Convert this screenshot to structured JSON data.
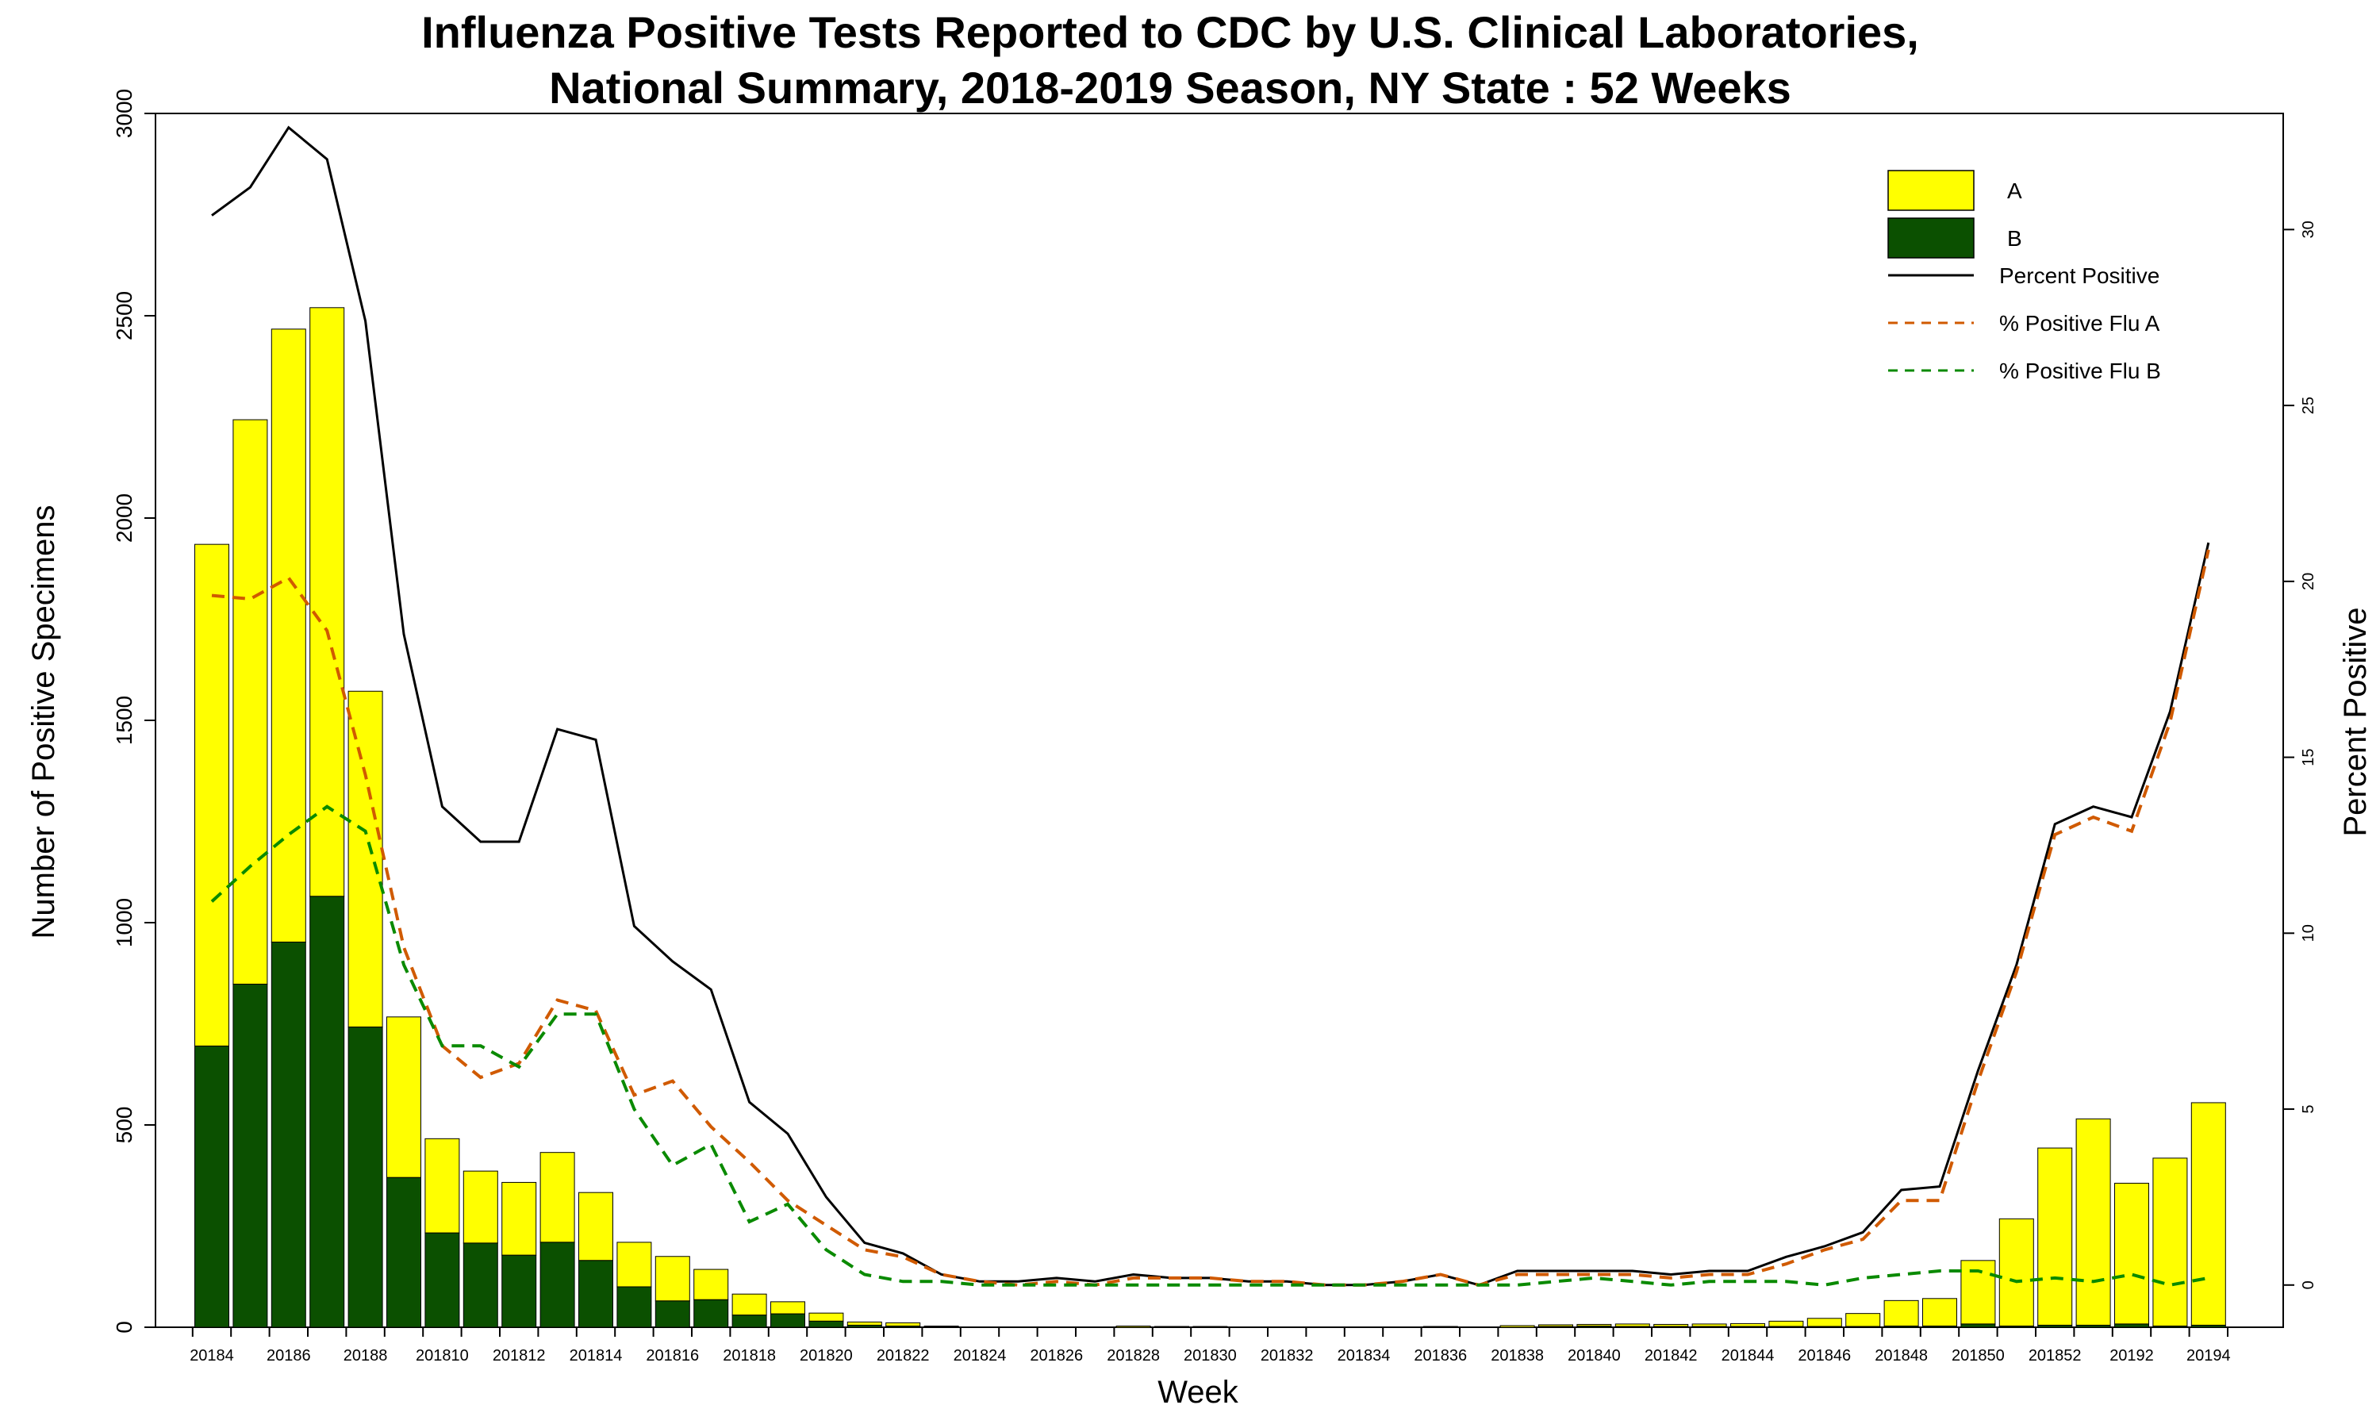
{
  "chart_data": {
    "type": "bar",
    "title_lines": [
      "Influenza Positive Tests Reported to CDC by U.S. Clinical Laboratories,",
      "National Summary, 2018-2019 Season, NY State : 52 Weeks"
    ],
    "xlabel": "Week",
    "ylabel": "Number of Positive Specimens",
    "y2label": "Percent Positive",
    "ylim": [
      0,
      3000
    ],
    "y2lim": [
      -1.2,
      33.3
    ],
    "yticks": [
      "0",
      "500",
      "1000",
      "1500",
      "2000",
      "2500",
      "3000"
    ],
    "y2ticks": [
      "0",
      "5",
      "10",
      "15",
      "20",
      "25",
      "30"
    ],
    "stacked": true,
    "grid": false,
    "legend_position": "top-right",
    "categories": [
      "20184",
      "20185",
      "20186",
      "20187",
      "20188",
      "20189",
      "201810",
      "201811",
      "201812",
      "201813",
      "201814",
      "201815",
      "201816",
      "201817",
      "201818",
      "201819",
      "201820",
      "201821",
      "201822",
      "201823",
      "201824",
      "201825",
      "201826",
      "201827",
      "201828",
      "201829",
      "201830",
      "201831",
      "201832",
      "201833",
      "201834",
      "201835",
      "201836",
      "201837",
      "201838",
      "201839",
      "201840",
      "201841",
      "201842",
      "201843",
      "201844",
      "201845",
      "201846",
      "201847",
      "201848",
      "201849",
      "201850",
      "201851",
      "201852",
      "20191",
      "20192",
      "20193",
      "20194"
    ],
    "tick_labels": [
      "20184",
      "",
      "20186",
      "",
      "20188",
      "",
      "201810",
      "",
      "201812",
      "",
      "201814",
      "",
      "201816",
      "",
      "201818",
      "",
      "201820",
      "",
      "201822",
      "",
      "201824",
      "",
      "201826",
      "",
      "201828",
      "",
      "201830",
      "",
      "201832",
      "",
      "201834",
      "",
      "201836",
      "",
      "201838",
      "",
      "201840",
      "",
      "201842",
      "",
      "201844",
      "",
      "201846",
      "",
      "201848",
      "",
      "201850",
      "",
      "201852",
      "",
      "20192",
      "",
      "20194"
    ],
    "series": [
      {
        "name": "B",
        "color": "#0b5000",
        "values": [
          695,
          848,
          952,
          1065,
          742,
          370,
          233,
          208,
          178,
          210,
          165,
          100,
          65,
          68,
          30,
          33,
          15,
          5,
          3,
          1,
          0,
          0,
          0,
          0,
          0,
          0,
          0,
          0,
          0,
          0,
          0,
          0,
          0,
          0,
          0,
          2,
          3,
          2,
          2,
          2,
          2,
          2,
          2,
          2,
          3,
          3,
          8,
          3,
          5,
          5,
          8,
          3,
          5
        ]
      },
      {
        "name": "A",
        "color": "#ffff00",
        "values": [
          1240,
          1395,
          1515,
          1455,
          830,
          397,
          233,
          178,
          180,
          222,
          168,
          110,
          110,
          75,
          52,
          30,
          20,
          8,
          8,
          2,
          0,
          0,
          0,
          0,
          3,
          2,
          2,
          0,
          0,
          0,
          0,
          0,
          2,
          0,
          4,
          4,
          4,
          6,
          5,
          6,
          7,
          13,
          20,
          32,
          63,
          68,
          157,
          265,
          438,
          510,
          348,
          415,
          550
        ]
      },
      {
        "name": "Percent Positive",
        "color": "#000000",
        "line": "solid",
        "values": [
          30.4,
          31.2,
          32.9,
          32.0,
          27.4,
          18.5,
          13.6,
          12.6,
          12.6,
          15.8,
          15.5,
          10.2,
          9.2,
          8.4,
          5.2,
          4.3,
          2.5,
          1.2,
          0.9,
          0.3,
          0.1,
          0.1,
          0.2,
          0.1,
          0.3,
          0.2,
          0.2,
          0.1,
          0.1,
          0.0,
          0.0,
          0.1,
          0.3,
          0.0,
          0.4,
          0.4,
          0.4,
          0.4,
          0.3,
          0.4,
          0.4,
          0.8,
          1.1,
          1.5,
          2.7,
          2.8,
          6.1,
          9.1,
          13.1,
          13.6,
          13.3,
          16.3,
          21.1
        ]
      },
      {
        "name": "% Positive Flu A",
        "color": "#d05a00",
        "line": "dashed",
        "values": [
          19.6,
          19.5,
          20.1,
          18.6,
          14.5,
          9.6,
          6.8,
          5.9,
          6.3,
          8.1,
          7.8,
          5.4,
          5.8,
          4.5,
          3.5,
          2.4,
          1.7,
          1.0,
          0.8,
          0.3,
          0.1,
          0.0,
          0.1,
          0.0,
          0.2,
          0.2,
          0.2,
          0.1,
          0.1,
          0.0,
          0.0,
          0.1,
          0.3,
          0.0,
          0.3,
          0.3,
          0.3,
          0.3,
          0.2,
          0.3,
          0.3,
          0.6,
          1.0,
          1.3,
          2.4,
          2.4,
          5.8,
          8.9,
          12.8,
          13.3,
          12.9,
          16.0,
          20.9
        ]
      },
      {
        "name": "% Positive Flu B",
        "color": "#0a8a00",
        "line": "dashed",
        "values": [
          10.9,
          11.9,
          12.8,
          13.6,
          12.9,
          9.1,
          6.8,
          6.8,
          6.2,
          7.7,
          7.7,
          5.0,
          3.4,
          4.0,
          1.8,
          2.3,
          1.0,
          0.3,
          0.1,
          0.1,
          0.0,
          0.0,
          0.0,
          0.0,
          0.0,
          0.0,
          0.0,
          0.0,
          0.0,
          0.0,
          0.0,
          0.0,
          0.0,
          0.0,
          0.0,
          0.1,
          0.2,
          0.1,
          0.0,
          0.1,
          0.1,
          0.1,
          0.0,
          0.2,
          0.3,
          0.4,
          0.4,
          0.1,
          0.2,
          0.1,
          0.3,
          0.0,
          0.2
        ]
      }
    ]
  }
}
